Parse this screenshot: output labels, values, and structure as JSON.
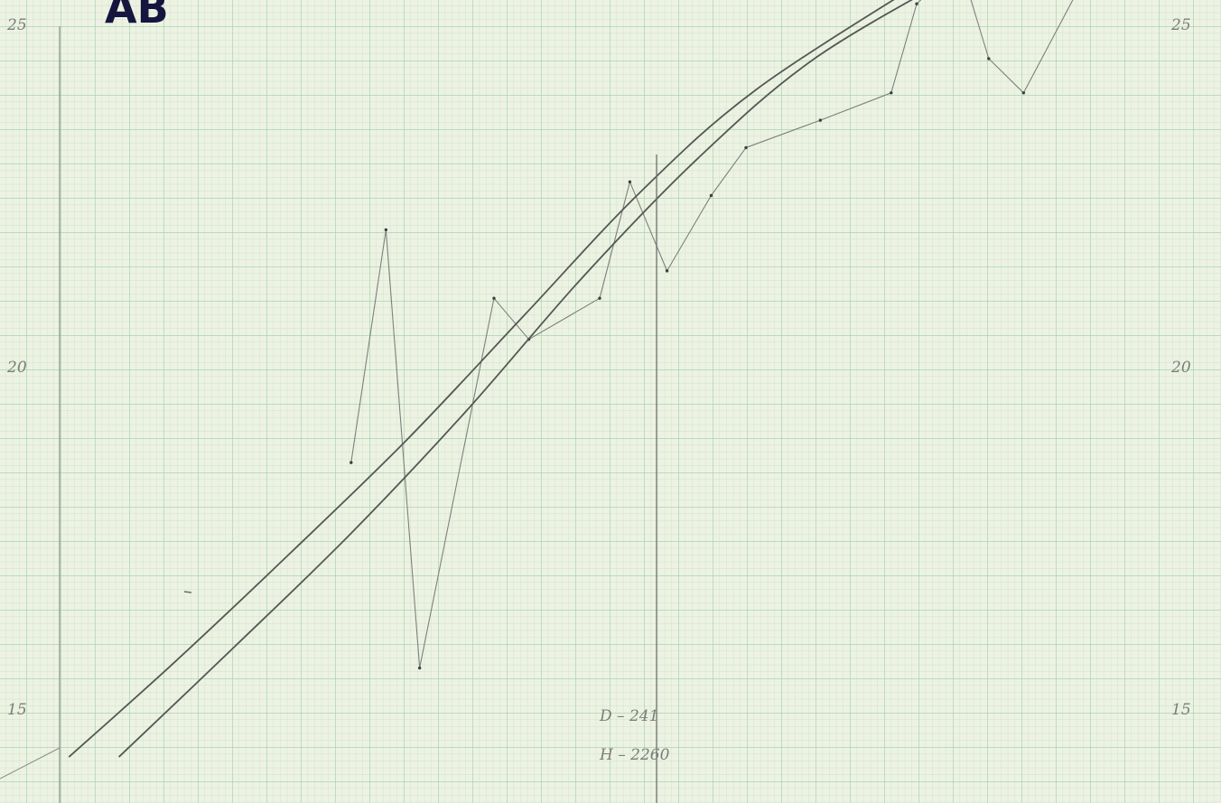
{
  "title": "AB",
  "chart_data": {
    "type": "line",
    "title": "AB",
    "xlabel": "",
    "ylabel": "",
    "ylim": [
      14.3,
      25.5
    ],
    "xlim": [
      0,
      100
    ],
    "grid": true,
    "grid_color": "#9fd3b0",
    "paper_color": "#eef2e2",
    "pencil_color": "#5c5e5c",
    "title_color": "#14163f",
    "y_ticks": [
      {
        "value": 25,
        "label": "25"
      },
      {
        "value": 20,
        "label": "20"
      },
      {
        "value": 15,
        "label": "15"
      }
    ],
    "annotations": [
      "D – 241",
      "H – 2260"
    ],
    "marker_x": 51.4,
    "series": [
      {
        "style": "thin-zigzag",
        "points": [
          [
            25.1,
            18.6
          ],
          [
            28.1,
            22.0
          ],
          [
            31.0,
            15.6
          ],
          [
            37.4,
            21.0
          ],
          [
            40.4,
            20.4
          ],
          [
            46.5,
            21.0
          ],
          [
            49.1,
            22.7
          ],
          [
            52.3,
            21.4
          ],
          [
            56.1,
            22.5
          ],
          [
            59.1,
            23.2
          ],
          [
            65.5,
            23.6
          ],
          [
            71.6,
            24.0
          ],
          [
            73.8,
            25.3
          ],
          [
            77.5,
            25.9
          ],
          [
            80.0,
            24.5
          ],
          [
            83.0,
            24.0
          ],
          [
            88.0,
            25.6
          ]
        ]
      },
      {
        "style": "smooth",
        "points": [
          [
            0.8,
            14.3
          ],
          [
            10.0,
            15.7
          ],
          [
            20.0,
            17.3
          ],
          [
            30.0,
            18.95
          ],
          [
            40.0,
            20.75
          ],
          [
            50.0,
            22.55
          ],
          [
            60.0,
            24.05
          ],
          [
            75.0,
            25.7
          ]
        ]
      },
      {
        "style": "smooth",
        "points": [
          [
            5.1,
            14.3
          ],
          [
            15.0,
            15.9
          ],
          [
            25.0,
            17.55
          ],
          [
            35.0,
            19.35
          ],
          [
            45.0,
            21.3
          ],
          [
            55.0,
            23.05
          ],
          [
            65.0,
            24.5
          ],
          [
            78.0,
            25.8
          ]
        ]
      }
    ]
  }
}
